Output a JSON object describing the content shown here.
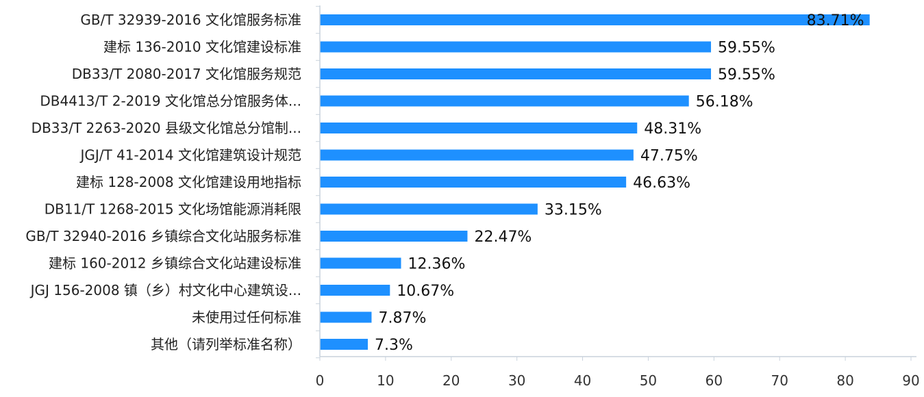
{
  "chart_data": {
    "type": "bar",
    "orientation": "horizontal",
    "title": "",
    "xlabel": "",
    "ylabel": "",
    "xlim": [
      0,
      90
    ],
    "xticks": [
      0,
      10,
      20,
      30,
      40,
      50,
      60,
      70,
      80,
      90
    ],
    "grid": false,
    "legend": "none",
    "bar_color": "#1e90ff",
    "categories": [
      "GB/T 32939-2016 文化馆服务标准",
      "建标 136-2010 文化馆建设标准",
      "DB33/T 2080-2017 文化馆服务规范",
      "DB4413/T 2-2019 文化馆总分馆服务体...",
      "DB33/T 2263-2020 县级文化馆总分馆制...",
      "JGJ/T 41-2014 文化馆建筑设计规范",
      "建标 128-2008 文化馆建设用地指标",
      "DB11/T 1268-2015 文化场馆能源消耗限",
      "GB/T 32940-2016 乡镇综合文化站服务标准",
      "建标 160-2012 乡镇综合文化站建设标准",
      "JGJ 156-2008 镇（乡）村文化中心建筑设...",
      "未使用过任何标准",
      "其他（请列举标准名称）"
    ],
    "values": [
      83.71,
      59.55,
      59.55,
      56.18,
      48.31,
      47.75,
      46.63,
      33.15,
      22.47,
      12.36,
      10.67,
      7.87,
      7.3
    ],
    "data_labels": [
      "83.71%",
      "59.55%",
      "59.55%",
      "56.18%",
      "48.31%",
      "47.75%",
      "46.63%",
      "33.15%",
      "22.47%",
      "12.36%",
      "10.67%",
      "7.87%",
      "7.3%"
    ]
  }
}
